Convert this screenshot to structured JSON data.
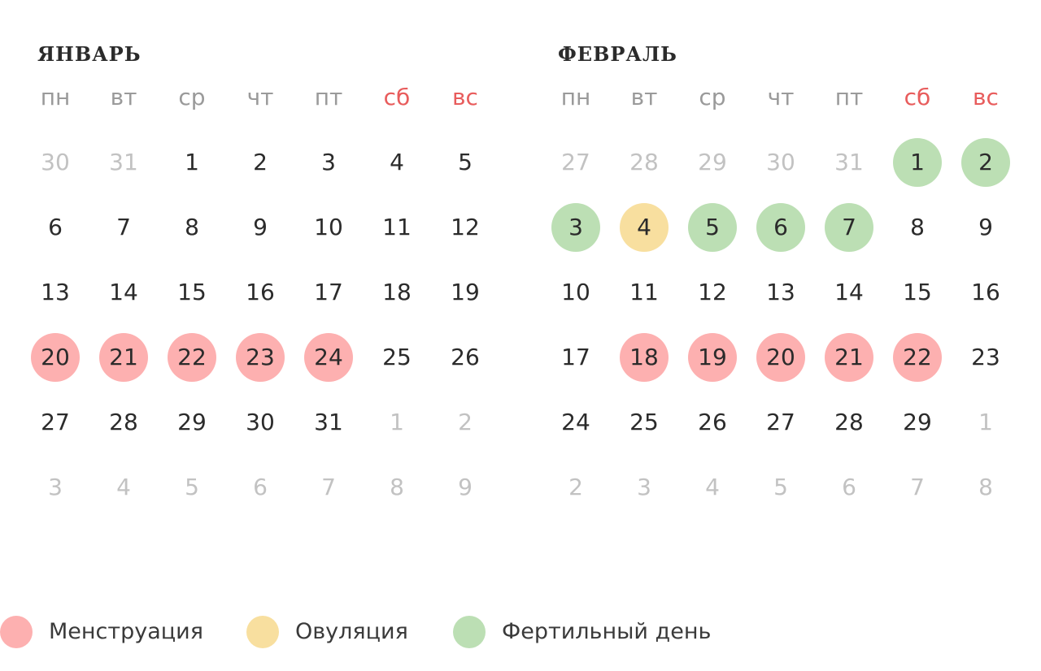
{
  "weekdays": [
    {
      "label": "пн",
      "weekend": false
    },
    {
      "label": "вт",
      "weekend": false
    },
    {
      "label": "ср",
      "weekend": false
    },
    {
      "label": "чт",
      "weekend": false
    },
    {
      "label": "пт",
      "weekend": false
    },
    {
      "label": "сб",
      "weekend": true
    },
    {
      "label": "вс",
      "weekend": true
    }
  ],
  "colors": {
    "menstruation": "#fdb0b0",
    "ovulation": "#f8df9f",
    "fertile": "#bcdfb4",
    "weekend": "#e85c5c",
    "other_month": "#c2c2c2"
  },
  "months": [
    {
      "id": "january",
      "title": "ЯНВАРЬ",
      "weeks": [
        [
          {
            "d": "30",
            "other": true
          },
          {
            "d": "31",
            "other": true
          },
          {
            "d": "1"
          },
          {
            "d": "2"
          },
          {
            "d": "3"
          },
          {
            "d": "4"
          },
          {
            "d": "5"
          }
        ],
        [
          {
            "d": "6"
          },
          {
            "d": "7"
          },
          {
            "d": "8"
          },
          {
            "d": "9"
          },
          {
            "d": "10"
          },
          {
            "d": "11"
          },
          {
            "d": "12"
          }
        ],
        [
          {
            "d": "13"
          },
          {
            "d": "14"
          },
          {
            "d": "15"
          },
          {
            "d": "16"
          },
          {
            "d": "17"
          },
          {
            "d": "18"
          },
          {
            "d": "19"
          }
        ],
        [
          {
            "d": "20",
            "mark": "menstruation"
          },
          {
            "d": "21",
            "mark": "menstruation"
          },
          {
            "d": "22",
            "mark": "menstruation"
          },
          {
            "d": "23",
            "mark": "menstruation"
          },
          {
            "d": "24",
            "mark": "menstruation"
          },
          {
            "d": "25"
          },
          {
            "d": "26"
          }
        ],
        [
          {
            "d": "27"
          },
          {
            "d": "28"
          },
          {
            "d": "29"
          },
          {
            "d": "30"
          },
          {
            "d": "31"
          },
          {
            "d": "1",
            "other": true
          },
          {
            "d": "2",
            "other": true
          }
        ],
        [
          {
            "d": "3",
            "other": true
          },
          {
            "d": "4",
            "other": true
          },
          {
            "d": "5",
            "other": true
          },
          {
            "d": "6",
            "other": true
          },
          {
            "d": "7",
            "other": true
          },
          {
            "d": "8",
            "other": true
          },
          {
            "d": "9",
            "other": true
          }
        ]
      ]
    },
    {
      "id": "february",
      "title": "ФЕВРАЛЬ",
      "weeks": [
        [
          {
            "d": "27",
            "other": true
          },
          {
            "d": "28",
            "other": true
          },
          {
            "d": "29",
            "other": true
          },
          {
            "d": "30",
            "other": true
          },
          {
            "d": "31",
            "other": true
          },
          {
            "d": "1",
            "mark": "fertile"
          },
          {
            "d": "2",
            "mark": "fertile"
          }
        ],
        [
          {
            "d": "3",
            "mark": "fertile"
          },
          {
            "d": "4",
            "mark": "ovulation"
          },
          {
            "d": "5",
            "mark": "fertile"
          },
          {
            "d": "6",
            "mark": "fertile"
          },
          {
            "d": "7",
            "mark": "fertile"
          },
          {
            "d": "8"
          },
          {
            "d": "9"
          }
        ],
        [
          {
            "d": "10"
          },
          {
            "d": "11"
          },
          {
            "d": "12"
          },
          {
            "d": "13"
          },
          {
            "d": "14"
          },
          {
            "d": "15"
          },
          {
            "d": "16"
          }
        ],
        [
          {
            "d": "17"
          },
          {
            "d": "18",
            "mark": "menstruation"
          },
          {
            "d": "19",
            "mark": "menstruation"
          },
          {
            "d": "20",
            "mark": "menstruation"
          },
          {
            "d": "21",
            "mark": "menstruation"
          },
          {
            "d": "22",
            "mark": "menstruation"
          },
          {
            "d": "23"
          }
        ],
        [
          {
            "d": "24"
          },
          {
            "d": "25"
          },
          {
            "d": "26"
          },
          {
            "d": "27"
          },
          {
            "d": "28"
          },
          {
            "d": "29"
          },
          {
            "d": "1",
            "other": true
          }
        ],
        [
          {
            "d": "2",
            "other": true
          },
          {
            "d": "3",
            "other": true
          },
          {
            "d": "4",
            "other": true
          },
          {
            "d": "5",
            "other": true
          },
          {
            "d": "6",
            "other": true
          },
          {
            "d": "7",
            "other": true
          },
          {
            "d": "8",
            "other": true
          }
        ]
      ]
    }
  ],
  "legend": [
    {
      "key": "menstruation",
      "label": "Менструация"
    },
    {
      "key": "ovulation",
      "label": "Овуляция"
    },
    {
      "key": "fertile",
      "label": "Фертильный день"
    }
  ]
}
